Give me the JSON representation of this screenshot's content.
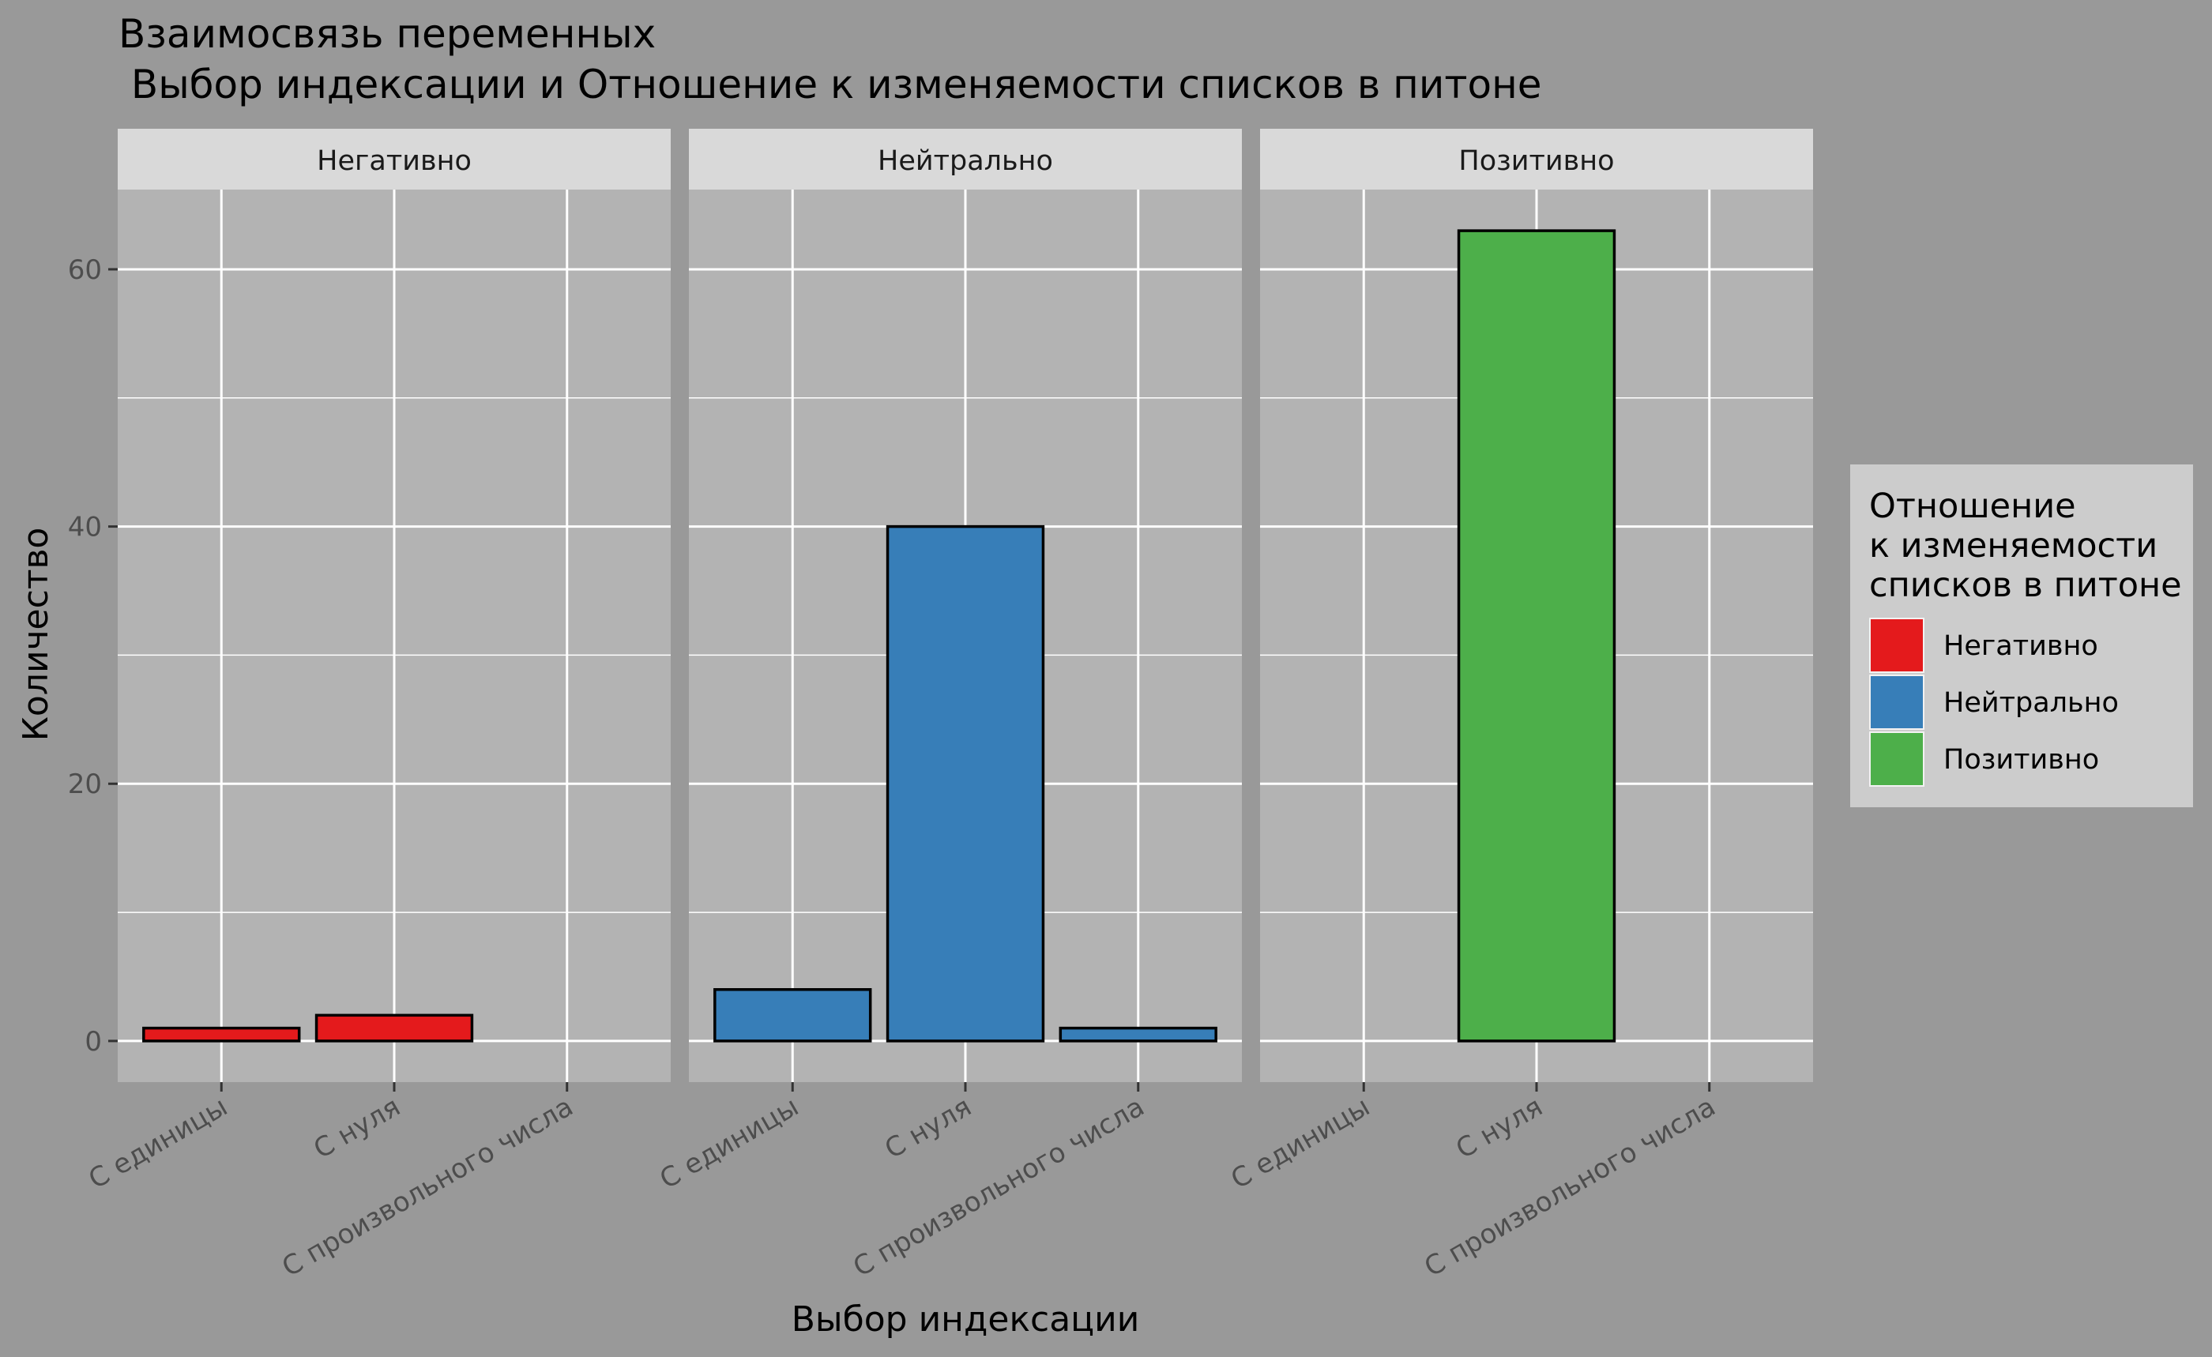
{
  "chart_data": {
    "type": "bar",
    "title_line1": "Взаимосвязь переменных",
    "title_line2": " Выбор индексации и Отношение к изменяемости списков в питоне",
    "xlabel": "Выбор индексации",
    "ylabel": "Количество",
    "categories": [
      "С единицы",
      "С нуля",
      "С произвольного числа"
    ],
    "yticks": [
      0,
      20,
      40,
      60
    ],
    "ylim": [
      -3.2,
      66.2
    ],
    "grid": true,
    "legend_position": "right",
    "legend_title": [
      "Отношение",
      "к изменяемости",
      "списков в питоне"
    ],
    "facets": [
      {
        "name": "Негативно",
        "color": "#E41A1C",
        "values": [
          1,
          2,
          0
        ]
      },
      {
        "name": "Нейтрально",
        "color": "#377EB8",
        "values": [
          4,
          40,
          1
        ]
      },
      {
        "name": "Позитивно",
        "color": "#4DAF4A",
        "values": [
          0,
          63,
          0
        ]
      }
    ],
    "colors": {
      "background": "#999999",
      "panel": "#B3B3B3",
      "strip": "#D9D9D9",
      "grid": "#FFFFFF",
      "legend_bg": "#CCCCCC"
    }
  }
}
